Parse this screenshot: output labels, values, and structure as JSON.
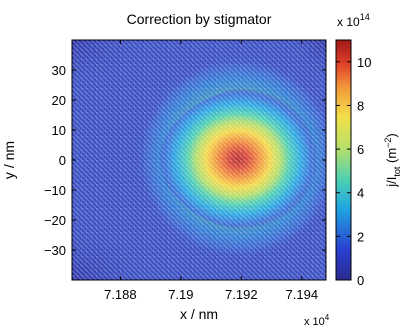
{
  "chart_data": {
    "type": "heatmap",
    "title": "Correction by stigmator",
    "xlabel": "x / nm",
    "ylabel": "y / nm",
    "x_exponent_label": "x 10",
    "x_exponent_power": "4",
    "xlim": [
      71864,
      71948
    ],
    "ylim": [
      -40,
      40
    ],
    "x_ticks": [
      71880,
      71900,
      71920,
      71940
    ],
    "x_tick_labels": [
      "7.188",
      "7.19",
      "7.192",
      "7.194"
    ],
    "y_ticks": [
      30,
      20,
      10,
      0,
      -10,
      -20,
      -30
    ],
    "y_tick_labels": [
      "30",
      "20",
      "10",
      "0",
      "−10",
      "−20",
      "−30"
    ],
    "grid": true,
    "peak": {
      "x": 71917,
      "y": 0,
      "value": 1000000000000000.0
    },
    "background_value": 40000000000000.0,
    "colorbar": {
      "label": "j/I",
      "label_subscript": "tot",
      "label_unit": " (m",
      "label_unit_power": "−2",
      "label_close": ")",
      "exponent_label": "x 10",
      "exponent_power": "14",
      "range": [
        0,
        1100000000000000.0
      ],
      "ticks": [
        0,
        2,
        4,
        6,
        8,
        10
      ],
      "tick_labels": [
        "0",
        "2",
        "4",
        "6",
        "8",
        "10"
      ]
    },
    "colormap": [
      "#00008f",
      "#0000ff",
      "#00ffff",
      "#ffff00",
      "#ff0000",
      "#800000"
    ]
  }
}
